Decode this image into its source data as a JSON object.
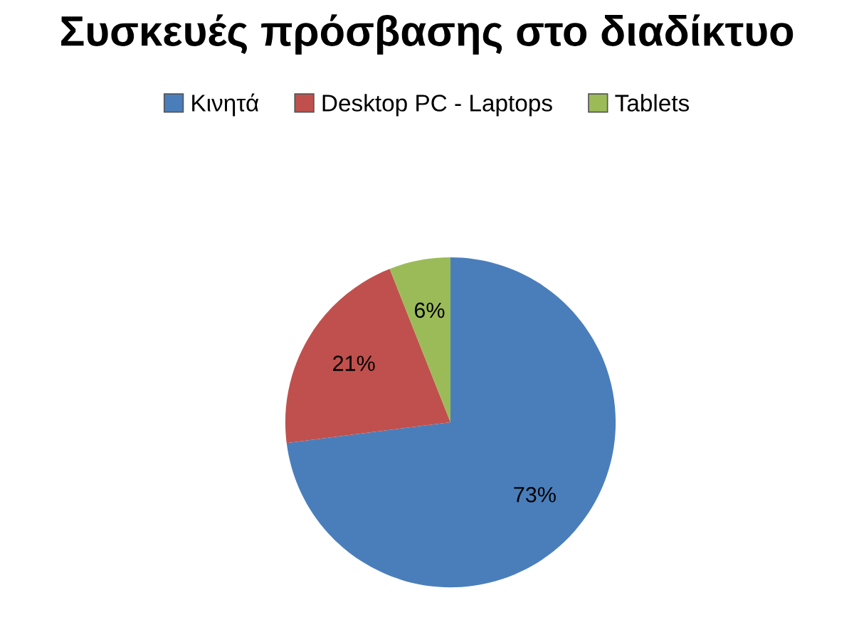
{
  "chart_data": {
    "type": "pie",
    "title": "Συσκευές πρόσβασης στο διαδίκτυο",
    "categories": [
      "Κινητά",
      "Desktop PC - Laptops",
      "Tablets"
    ],
    "values": [
      73,
      21,
      6
    ],
    "value_labels": [
      "73%",
      "21%",
      "6%"
    ],
    "colors": [
      "#4a7ebb",
      "#c0504d",
      "#9bbb59"
    ],
    "legend": "top"
  }
}
